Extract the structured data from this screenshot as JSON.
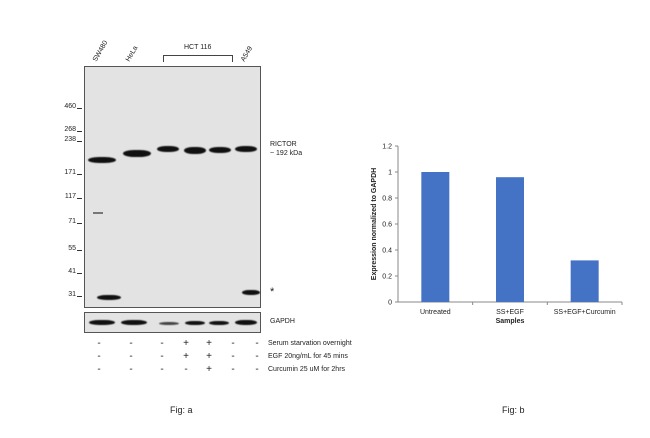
{
  "fig_a": {
    "lanes": [
      "SW480",
      "HeLa",
      "HCT 116",
      "A549"
    ],
    "markers": [
      "460",
      "268",
      "238",
      "171",
      "117",
      "71",
      "55",
      "41",
      "31"
    ],
    "target_label_1": "RICTOR",
    "target_label_2": "~ 192 kDa",
    "loading_label": "GAPDH",
    "asterisk": "*",
    "treatments": [
      {
        "label": "Serum starvation overnight",
        "marks": [
          "-",
          "-",
          "-",
          "+",
          "+",
          "-",
          "-"
        ]
      },
      {
        "label": "EGF 20ng/mL for 45 mins",
        "marks": [
          "-",
          "-",
          "-",
          "+",
          "+",
          "-",
          "-"
        ]
      },
      {
        "label": "Curcumin 25 uM for 2hrs",
        "marks": [
          "-",
          "-",
          "-",
          "-",
          "+",
          "-",
          "-"
        ]
      }
    ],
    "caption": "Fig: a"
  },
  "chart_data": {
    "type": "bar",
    "categories": [
      "Untreated",
      "SS+EGF",
      "SS+EGF+Curcumin"
    ],
    "values": [
      1.0,
      0.96,
      0.32
    ],
    "xlabel": "Samples",
    "ylabel": "Expression normalized to GAPDH",
    "ylim": [
      0,
      1.2
    ],
    "yticks": [
      "0",
      "0.2",
      "0.4",
      "0.6",
      "0.8",
      "1",
      "1.2"
    ],
    "bar_color": "#4472c4",
    "caption": "Fig: b"
  }
}
